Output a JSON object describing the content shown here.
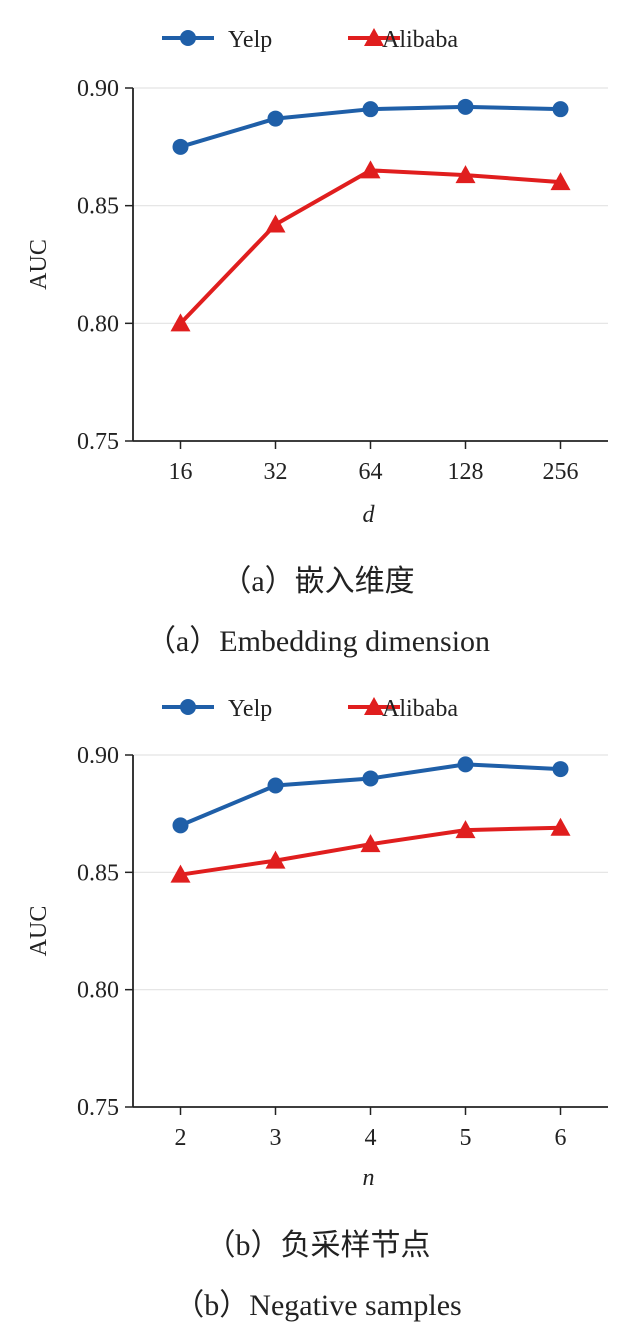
{
  "chart_data": [
    {
      "type": "line",
      "categories": [
        "16",
        "32",
        "64",
        "128",
        "256"
      ],
      "series": [
        {
          "name": "Yelp",
          "color": "#1f5fa8",
          "marker": "circle",
          "values": [
            0.875,
            0.887,
            0.891,
            0.892,
            0.891
          ]
        },
        {
          "name": "Alibaba",
          "color": "#e01e1e",
          "marker": "triangle",
          "values": [
            0.8,
            0.842,
            0.865,
            0.863,
            0.86
          ]
        }
      ],
      "ylim": [
        0.75,
        0.9
      ],
      "yticks": [
        "0.75",
        "0.80",
        "0.85",
        "0.90"
      ],
      "xlabel": "d",
      "ylabel": "AUC",
      "grid": "horizontal",
      "legend_position": "top",
      "caption_cn": "（a）嵌入维度",
      "caption_en": "（a）Embedding dimension"
    },
    {
      "type": "line",
      "categories": [
        "2",
        "3",
        "4",
        "5",
        "6"
      ],
      "series": [
        {
          "name": "Yelp",
          "color": "#1f5fa8",
          "marker": "circle",
          "values": [
            0.87,
            0.887,
            0.89,
            0.896,
            0.894
          ]
        },
        {
          "name": "Alibaba",
          "color": "#e01e1e",
          "marker": "triangle",
          "values": [
            0.849,
            0.855,
            0.862,
            0.868,
            0.869
          ]
        }
      ],
      "ylim": [
        0.75,
        0.9
      ],
      "yticks": [
        "0.75",
        "0.80",
        "0.85",
        "0.90"
      ],
      "xlabel": "n",
      "ylabel": "AUC",
      "grid": "horizontal",
      "legend_position": "top",
      "caption_cn": "（b）负采样节点",
      "caption_en": "（b）Negative samples"
    }
  ]
}
